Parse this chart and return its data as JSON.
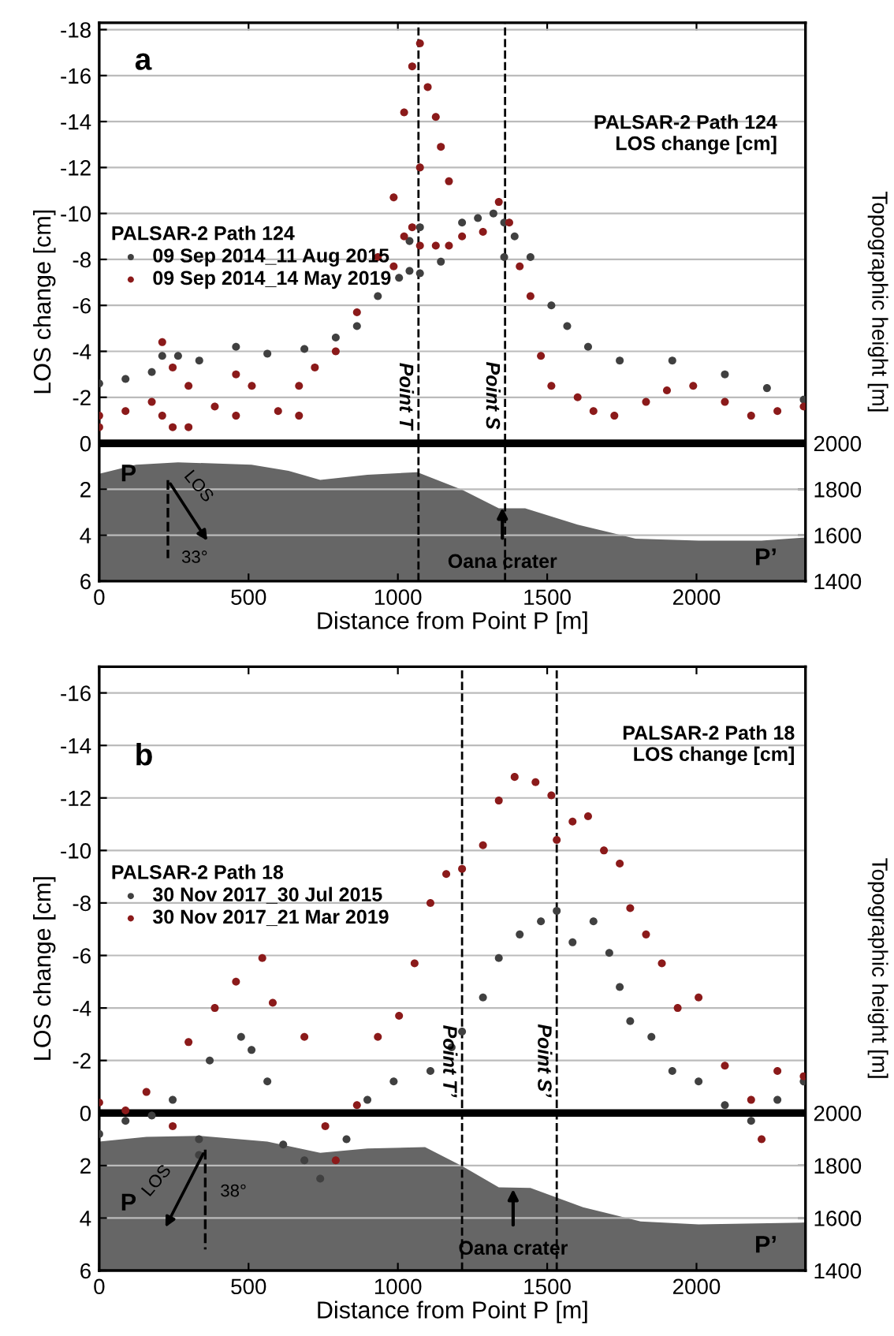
{
  "chart_data": [
    {
      "type": "scatter",
      "xlabel": "Distance from Point P [m]",
      "ylabel": "LOS change [cm]",
      "y2label": "Topographic height [m]",
      "legend_title": "PALSAR-2 Path 124",
      "legend": "left",
      "grid": "y",
      "xlim": [
        0,
        2365
      ],
      "xticks": [
        0,
        500,
        1000,
        1500,
        2000
      ],
      "ylim": [
        6,
        -18.3
      ],
      "yticks": [
        -18,
        -16,
        -14,
        -12,
        -10,
        -8,
        -6,
        -4,
        -2,
        0,
        2,
        4,
        6
      ],
      "y2lim": [
        1400,
        3830
      ],
      "y2ticks": [
        1400,
        1600,
        1800,
        2000
      ],
      "annotations": [
        "a",
        "PALSAR-2 Path 124\nLOS change [cm]",
        "P",
        "P’",
        "LOS",
        "33°",
        {
          "text": "Oana crater",
          "x": 1350,
          "y": 2.8
        }
      ],
      "ref_lines": [
        {
          "axis": "y",
          "value": 0,
          "color": "#000000",
          "line_style": "solid"
        },
        {
          "axis": "x",
          "value": 1069,
          "label": "Point T",
          "color": "#000000",
          "line_style": "dashed"
        },
        {
          "axis": "x",
          "value": 1359,
          "label": "Point S",
          "color": "#000000",
          "line_style": "dashed"
        }
      ],
      "series": [
        {
          "type": "area",
          "axis": "y2",
          "color": "#666666",
          "x": [
            0,
            123,
            264,
            510,
            634,
            740,
            898,
            1065,
            1215,
            1338,
            1426,
            1602,
            1796,
            2007,
            2218,
            2365
          ],
          "values": [
            1867,
            1907,
            1917,
            1907,
            1880,
            1841,
            1863,
            1874,
            1798,
            1717,
            1717,
            1646,
            1585,
            1576,
            1576,
            1590
          ]
        },
        {
          "name": "09 Sep 2014_11 Aug 2015",
          "color": "#404040",
          "marker": "circle",
          "x": [
            0,
            88,
            176,
            211,
            264,
            335,
            458,
            563,
            687,
            792,
            863,
            933,
            1004,
            1039,
            1039,
            1074,
            1074,
            1144,
            1215,
            1268,
            1320,
            1356,
            1356,
            1391,
            1444,
            1514,
            1567,
            1637,
            1743,
            1919,
            2095,
            2236,
            2359
          ],
          "values": [
            -2.6,
            -2.8,
            -3.1,
            -3.8,
            -3.8,
            -3.6,
            -4.2,
            -3.9,
            -4.1,
            -4.6,
            -5.1,
            -6.4,
            -7.2,
            -8.8,
            -7.5,
            -9.4,
            -7.4,
            -7.9,
            -9.6,
            -9.8,
            -10.0,
            -9.6,
            -8.1,
            -9.0,
            -8.1,
            -6.0,
            -5.1,
            -4.2,
            -3.6,
            -3.6,
            -3.0,
            -2.4,
            -1.9
          ]
        },
        {
          "name": "09 Sep 2014_14 May 2019",
          "color": "#8b1a1a",
          "marker": "circle",
          "x": [
            0,
            0,
            88,
            176,
            211,
            211,
            246,
            246,
            299,
            299,
            387,
            458,
            458,
            511,
            599,
            669,
            669,
            722,
            792,
            863,
            933,
            986,
            986,
            1021,
            1021,
            1048,
            1048,
            1074,
            1074,
            1074,
            1100,
            1127,
            1127,
            1144,
            1171,
            1171,
            1215,
            1285,
            1338,
            1373,
            1408,
            1444,
            1479,
            1514,
            1602,
            1655,
            1725,
            1831,
            1901,
            1989,
            2095,
            2183,
            2271,
            2359
          ],
          "values": [
            -0.7,
            -1.2,
            -1.4,
            -1.8,
            -4.4,
            -1.2,
            -3.3,
            -0.7,
            -2.5,
            -0.7,
            -1.6,
            -3.0,
            -1.2,
            -2.5,
            -1.4,
            -2.5,
            -1.2,
            -3.3,
            -4.0,
            -5.7,
            -8.1,
            -10.7,
            -7.7,
            -14.4,
            -9.0,
            -16.4,
            -9.4,
            -17.4,
            -12.0,
            -8.6,
            -15.5,
            -14.2,
            -8.6,
            -12.9,
            -11.4,
            -8.6,
            -9.0,
            -9.2,
            -10.5,
            -9.6,
            -7.7,
            -6.4,
            -3.8,
            -2.5,
            -2.0,
            -1.4,
            -1.2,
            -1.8,
            -2.3,
            -2.5,
            -1.8,
            -1.2,
            -1.4,
            -1.6
          ]
        }
      ]
    },
    {
      "type": "scatter",
      "xlabel": "Distance from Point P [m]",
      "ylabel": "LOS change [cm]",
      "y2label": "Topographic height [m]",
      "legend_title": "PALSAR-2 Path 18",
      "legend": "left",
      "grid": "y",
      "xlim": [
        0,
        2365
      ],
      "xticks": [
        0,
        500,
        1000,
        1500,
        2000
      ],
      "ylim": [
        6,
        -17
      ],
      "yticks": [
        -16,
        -14,
        -12,
        -10,
        -8,
        -6,
        -4,
        -2,
        0,
        2,
        4,
        6
      ],
      "y2lim": [
        1400,
        3700
      ],
      "y2ticks": [
        1400,
        1600,
        1800,
        2000
      ],
      "annotations": [
        "b",
        "PALSAR-2 Path 18\nLOS change [cm]",
        "P",
        "P’",
        "LOS",
        "38°",
        {
          "text": "Oana crater",
          "x": 1386,
          "y": 2.9
        }
      ],
      "ref_lines": [
        {
          "axis": "y",
          "value": 0,
          "color": "#000000",
          "line_style": "solid"
        },
        {
          "axis": "x",
          "value": 1215,
          "label": "Point T’",
          "color": "#000000",
          "line_style": "dashed"
        },
        {
          "axis": "x",
          "value": 1532,
          "label": "Point S’",
          "color": "#000000",
          "line_style": "dashed"
        }
      ],
      "series": [
        {
          "type": "area",
          "axis": "y2",
          "color": "#666666",
          "x": [
            0,
            158,
            334,
            563,
            740,
            898,
            1091,
            1215,
            1338,
            1444,
            1620,
            1813,
            2007,
            2365
          ],
          "values": [
            1891,
            1909,
            1913,
            1891,
            1848,
            1865,
            1870,
            1798,
            1717,
            1715,
            1641,
            1587,
            1576,
            1583
          ]
        },
        {
          "name": "30 Nov 2017_30 Jul 2015",
          "color": "#404040",
          "marker": "circle",
          "x": [
            0,
            88,
            176,
            246,
            334,
            334,
            370,
            475,
            510,
            563,
            616,
            687,
            740,
            828,
            898,
            986,
            1109,
            1180,
            1215,
            1285,
            1338,
            1408,
            1479,
            1532,
            1585,
            1655,
            1708,
            1743,
            1778,
            1849,
            1919,
            2007,
            2095,
            2183,
            2271,
            2359
          ],
          "values": [
            0.8,
            0.3,
            0.1,
            -0.5,
            1.0,
            1.6,
            -2.0,
            -2.9,
            -2.4,
            -1.2,
            1.2,
            1.8,
            2.5,
            1.0,
            -0.5,
            -1.2,
            -1.6,
            -2.5,
            -3.1,
            -4.4,
            -5.9,
            -6.8,
            -7.3,
            -7.7,
            -6.5,
            -7.3,
            -6.1,
            -4.8,
            -3.5,
            -2.9,
            -1.6,
            -1.2,
            -0.3,
            0.3,
            -0.5,
            -1.2
          ]
        },
        {
          "name": "30 Nov 2017_21 Mar 2019",
          "color": "#8b1a1a",
          "marker": "circle",
          "x": [
            0,
            88,
            158,
            246,
            299,
            387,
            458,
            546,
            581,
            687,
            757,
            792,
            863,
            933,
            1004,
            1056,
            1109,
            1162,
            1215,
            1285,
            1338,
            1391,
            1461,
            1514,
            1532,
            1585,
            1637,
            1690,
            1743,
            1778,
            1831,
            1884,
            1937,
            2007,
            2095,
            2183,
            2218,
            2271,
            2359
          ],
          "values": [
            -0.4,
            -0.1,
            -0.8,
            0.5,
            -2.7,
            -4.0,
            -5.0,
            -5.9,
            -4.2,
            -2.9,
            0.5,
            1.8,
            -0.3,
            -2.9,
            -3.7,
            -5.7,
            -8.0,
            -9.1,
            -9.3,
            -10.2,
            -11.9,
            -12.8,
            -12.6,
            -12.1,
            -10.4,
            -11.1,
            -11.3,
            -10.0,
            -9.5,
            -7.8,
            -6.8,
            -5.7,
            -4.0,
            -4.4,
            -1.8,
            -0.5,
            1.0,
            -1.6,
            -1.4
          ]
        }
      ]
    }
  ]
}
